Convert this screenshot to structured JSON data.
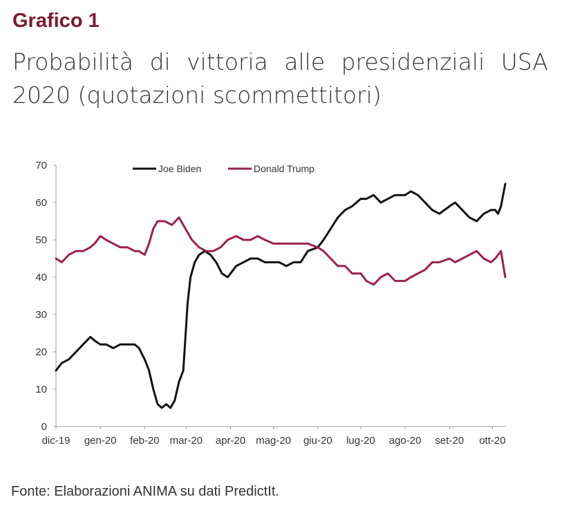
{
  "header": {
    "figure_label": "Grafico 1",
    "title": "Probabilità di vittoria alle presidenziali USA 2020 (quotazioni scommettitori)"
  },
  "footer": {
    "source": "Fonte: Elaborazioni ANIMA su dati PredictIt."
  },
  "colors": {
    "biden": "#111111",
    "trump": "#9b2050",
    "label": "#7a1a30"
  },
  "chart_data": {
    "type": "line",
    "x_tick_labels": [
      "dic-19",
      "gen-20",
      "feb-20",
      "mar-20",
      "apr-20",
      "mag-20",
      "giu-20",
      "lug-20",
      "ago-20",
      "set-20",
      "ott-20"
    ],
    "ylim": [
      0,
      70
    ],
    "y_ticks": [
      0,
      10,
      20,
      30,
      40,
      50,
      60,
      70
    ],
    "grid": false,
    "legend_position": "top",
    "series": [
      {
        "name": "Joe Biden",
        "color": "#111111",
        "x": [
          "2019-12-01",
          "2019-12-05",
          "2019-12-10",
          "2019-12-15",
          "2019-12-20",
          "2019-12-25",
          "2019-12-28",
          "2020-01-01",
          "2020-01-05",
          "2020-01-10",
          "2020-01-15",
          "2020-01-20",
          "2020-01-25",
          "2020-01-28",
          "2020-02-01",
          "2020-02-04",
          "2020-02-07",
          "2020-02-10",
          "2020-02-13",
          "2020-02-16",
          "2020-02-19",
          "2020-02-22",
          "2020-02-25",
          "2020-02-28",
          "2020-03-02",
          "2020-03-04",
          "2020-03-07",
          "2020-03-10",
          "2020-03-14",
          "2020-03-18",
          "2020-03-22",
          "2020-03-26",
          "2020-03-30",
          "2020-04-05",
          "2020-04-10",
          "2020-04-15",
          "2020-04-20",
          "2020-04-25",
          "2020-05-01",
          "2020-05-05",
          "2020-05-10",
          "2020-05-15",
          "2020-05-20",
          "2020-05-25",
          "2020-06-01",
          "2020-06-05",
          "2020-06-10",
          "2020-06-15",
          "2020-06-20",
          "2020-06-25",
          "2020-07-01",
          "2020-07-05",
          "2020-07-10",
          "2020-07-15",
          "2020-07-20",
          "2020-07-25",
          "2020-08-01",
          "2020-08-05",
          "2020-08-10",
          "2020-08-15",
          "2020-08-20",
          "2020-08-25",
          "2020-09-01",
          "2020-09-05",
          "2020-09-10",
          "2020-09-15",
          "2020-09-20",
          "2020-09-25",
          "2020-09-30",
          "2020-10-03",
          "2020-10-05",
          "2020-10-07",
          "2020-10-10"
        ],
        "y": [
          15,
          17,
          18,
          20,
          22,
          24,
          23,
          22,
          22,
          21,
          22,
          22,
          22,
          21,
          18,
          15,
          10,
          6,
          5,
          6,
          5,
          7,
          12,
          15,
          33,
          40,
          44,
          46,
          47,
          46,
          44,
          41,
          40,
          43,
          44,
          45,
          45,
          44,
          44,
          44,
          43,
          44,
          44,
          47,
          48,
          50,
          53,
          56,
          58,
          59,
          61,
          61,
          62,
          60,
          61,
          62,
          62,
          63,
          62,
          60,
          58,
          57,
          59,
          60,
          58,
          56,
          55,
          57,
          58,
          58,
          57,
          59,
          65
        ]
      },
      {
        "name": "Donald Trump",
        "color": "#9b2050",
        "x": [
          "2019-12-01",
          "2019-12-05",
          "2019-12-10",
          "2019-12-15",
          "2019-12-20",
          "2019-12-25",
          "2019-12-28",
          "2020-01-01",
          "2020-01-05",
          "2020-01-10",
          "2020-01-15",
          "2020-01-20",
          "2020-01-25",
          "2020-01-28",
          "2020-02-01",
          "2020-02-04",
          "2020-02-07",
          "2020-02-10",
          "2020-02-15",
          "2020-02-20",
          "2020-02-25",
          "2020-02-28",
          "2020-03-02",
          "2020-03-05",
          "2020-03-10",
          "2020-03-15",
          "2020-03-20",
          "2020-03-25",
          "2020-03-30",
          "2020-04-05",
          "2020-04-10",
          "2020-04-15",
          "2020-04-20",
          "2020-04-25",
          "2020-05-01",
          "2020-05-05",
          "2020-05-10",
          "2020-05-15",
          "2020-05-20",
          "2020-05-25",
          "2020-06-01",
          "2020-06-05",
          "2020-06-10",
          "2020-06-15",
          "2020-06-20",
          "2020-06-25",
          "2020-07-01",
          "2020-07-05",
          "2020-07-10",
          "2020-07-15",
          "2020-07-20",
          "2020-07-25",
          "2020-08-01",
          "2020-08-05",
          "2020-08-10",
          "2020-08-15",
          "2020-08-20",
          "2020-08-25",
          "2020-09-01",
          "2020-09-05",
          "2020-09-10",
          "2020-09-15",
          "2020-09-20",
          "2020-09-25",
          "2020-09-30",
          "2020-10-03",
          "2020-10-05",
          "2020-10-07",
          "2020-10-10"
        ],
        "y": [
          45,
          44,
          46,
          47,
          47,
          48,
          49,
          51,
          50,
          49,
          48,
          48,
          47,
          47,
          46,
          49,
          53,
          55,
          55,
          54,
          56,
          54,
          52,
          50,
          48,
          47,
          47,
          48,
          50,
          51,
          50,
          50,
          51,
          50,
          49,
          49,
          49,
          49,
          49,
          49,
          48,
          47,
          45,
          43,
          43,
          41,
          41,
          39,
          38,
          40,
          41,
          39,
          39,
          40,
          41,
          42,
          44,
          44,
          45,
          44,
          45,
          46,
          47,
          45,
          44,
          45,
          46,
          47,
          40
        ]
      }
    ]
  }
}
